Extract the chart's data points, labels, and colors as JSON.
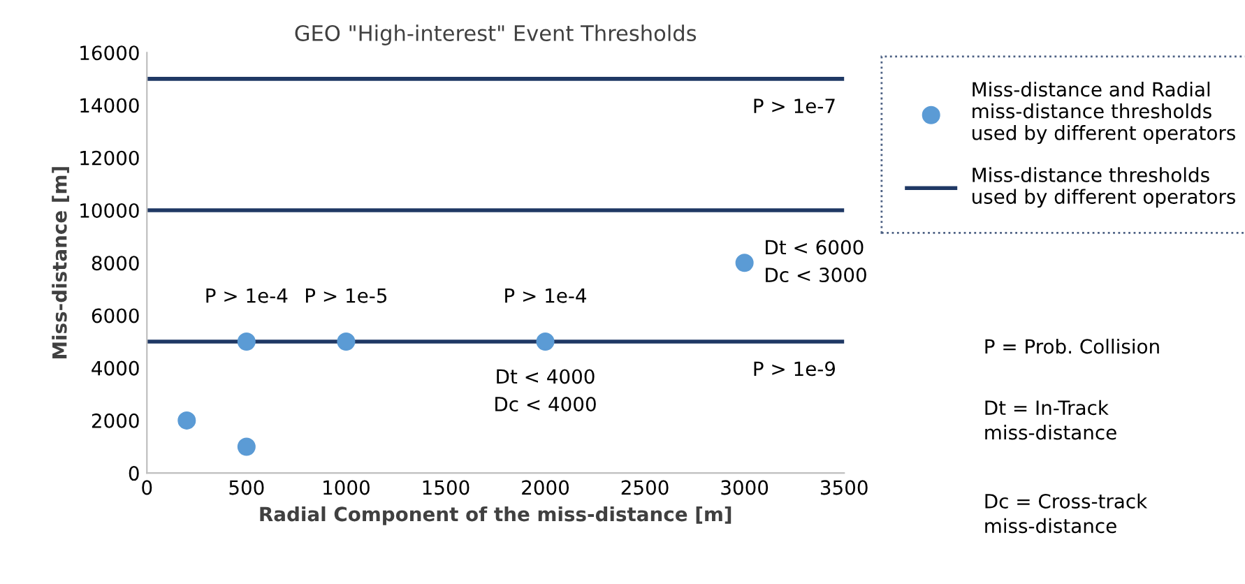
{
  "chart_data": {
    "type": "scatter",
    "title": "GEO \"High-interest\" Event Thresholds",
    "xlabel": "Radial Component of the miss-distance [m]",
    "ylabel": "Miss-distance [m]",
    "xlim": [
      0,
      3500
    ],
    "xticks": [
      0,
      500,
      1000,
      1500,
      2000,
      2500,
      3000,
      3500
    ],
    "ylim": [
      0,
      16000
    ],
    "yticks": [
      0,
      2000,
      4000,
      6000,
      8000,
      10000,
      12000,
      14000,
      16000
    ],
    "grid": false,
    "legend": "right",
    "marker": "circle",
    "series": [
      {
        "name": "Miss-distance and Radial\nmiss-distance thresholds\nused by different operators",
        "color": "#5b9bd5",
        "x": [
          200,
          500,
          500,
          1000,
          2000,
          3000
        ],
        "values": [
          2000,
          1000,
          5000,
          5000,
          5000,
          8000
        ]
      },
      {
        "name": "Miss-distance thresholds\nused by different operators",
        "type": "line",
        "color": "#1f3864",
        "line_style": "solid",
        "marker": "none",
        "x": [
          0,
          3500
        ],
        "values": [
          5000,
          5000
        ]
      },
      {
        "type": "line",
        "color": "#1f3864",
        "line_style": "solid",
        "marker": "none",
        "x": [
          0,
          3500
        ],
        "values": [
          10000,
          10000
        ]
      },
      {
        "type": "line",
        "color": "#1f3864",
        "line_style": "solid",
        "marker": "none",
        "x": [
          0,
          3500
        ],
        "values": [
          15000,
          15000
        ]
      }
    ],
    "annotations": [
      {
        "text": "P > 1e-4",
        "x": 500,
        "y": 5000
      },
      {
        "text": "P > 1e-5",
        "x": 1000,
        "y": 5000
      },
      {
        "text": "P > 1e-4",
        "x": 2000,
        "y": 5000
      },
      {
        "text": "Dt < 4000\nDc < 4000",
        "x": 2000,
        "y": 5000
      },
      {
        "text": "Dt < 6000\nDc < 3000",
        "x": 3000,
        "y": 8000
      },
      {
        "text": "P > 1e-7",
        "x": 3250,
        "y": 15000
      },
      {
        "text": "P > 1e-9",
        "x": 3250,
        "y": 5000
      },
      "P = Prob. Collision",
      "Dt = In-Track\nmiss-distance",
      "Dc = Cross-track\nmiss-distance"
    ]
  }
}
